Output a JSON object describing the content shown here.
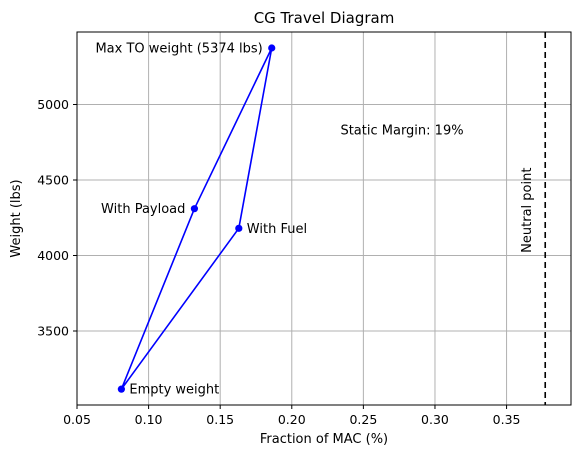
{
  "chart_data": {
    "type": "line",
    "title": "CG Travel Diagram",
    "xlabel": "Fraction of MAC (%)",
    "ylabel": "Weight (lbs)",
    "xlim": [
      0.05,
      0.395
    ],
    "ylim": [
      3010,
      5480
    ],
    "x_ticks": [
      0.05,
      0.1,
      0.15,
      0.2,
      0.25,
      0.3,
      0.35
    ],
    "x_tick_labels": [
      "0.05",
      "0.10",
      "0.15",
      "0.20",
      "0.25",
      "0.30",
      "0.35"
    ],
    "y_ticks": [
      3500,
      4000,
      4500,
      5000
    ],
    "y_tick_labels": [
      "3500",
      "4000",
      "4500",
      "5000"
    ],
    "grid": true,
    "series": [
      {
        "color": "#0000ff",
        "points": [
          {
            "x": 0.081,
            "y": 3115
          },
          {
            "x": 0.132,
            "y": 4310
          },
          {
            "x": 0.186,
            "y": 5374
          },
          {
            "x": 0.163,
            "y": 4180
          },
          {
            "x": 0.081,
            "y": 3115
          }
        ]
      }
    ],
    "point_labels": [
      {
        "x": 0.081,
        "y": 3115,
        "text": "Empty weight",
        "align": "right-of"
      },
      {
        "x": 0.132,
        "y": 4310,
        "text": "With Payload",
        "align": "left-of"
      },
      {
        "x": 0.186,
        "y": 5374,
        "text": "Max TO weight (5374 lbs)",
        "align": "left-of"
      },
      {
        "x": 0.163,
        "y": 4180,
        "text": "With Fuel",
        "align": "right-of"
      }
    ],
    "neutral_point": {
      "x": 0.377,
      "label": "Neutral point",
      "color": "#000000"
    },
    "annotations": [
      {
        "x": 0.234,
        "y": 4830,
        "text": "Static Margin: 19%"
      }
    ]
  }
}
